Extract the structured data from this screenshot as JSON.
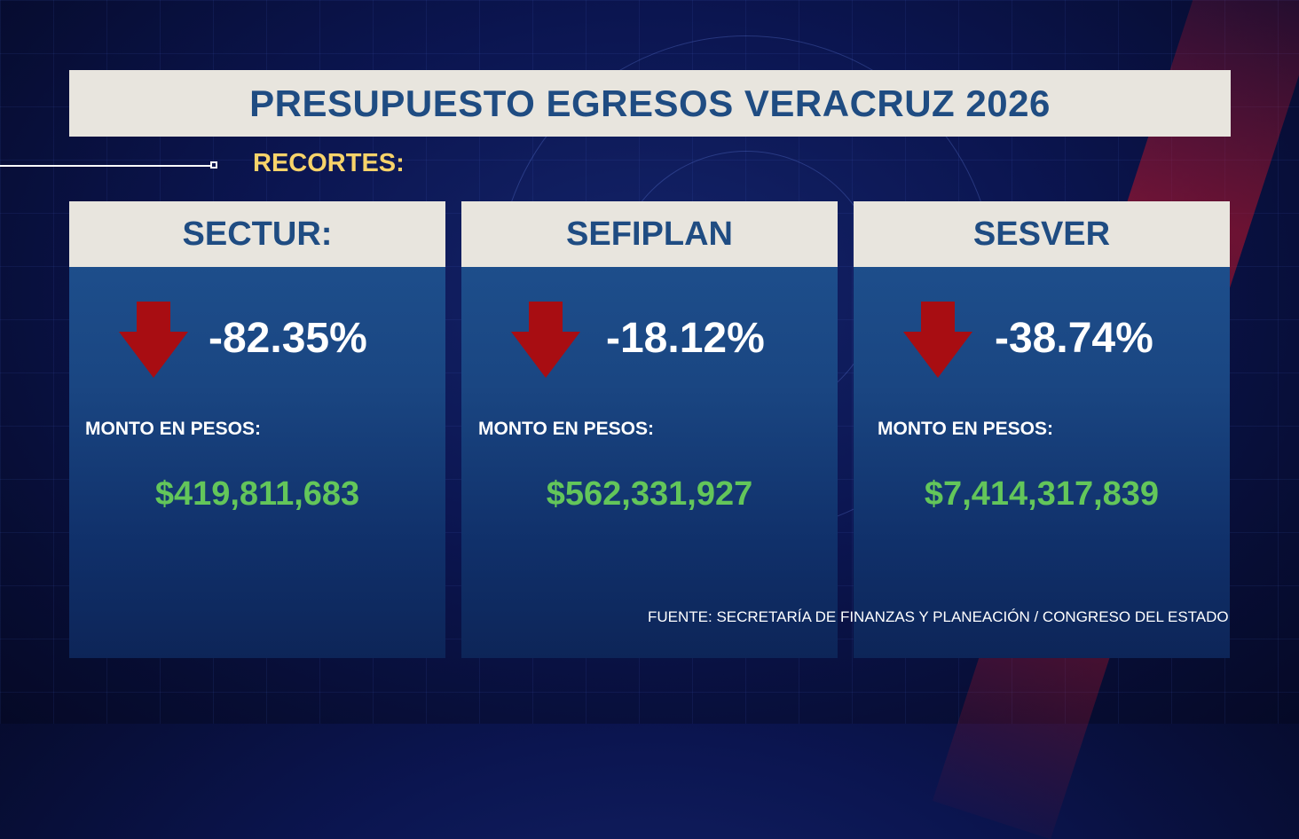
{
  "title": "PRESUPUESTO EGRESOS VERACRUZ 2026",
  "subtitle": "RECORTES:",
  "colors": {
    "title_text": "#1f4c82",
    "subtitle": "#f7d36a",
    "amount": "#63c65a",
    "arrow": "#a80d12",
    "panel_header": "#e8e5de"
  },
  "cards": [
    {
      "header": "SECTUR:",
      "arrow_icon": "down-arrow-icon",
      "percent": "-82.35%",
      "amount_label": "MONTO EN PESOS:",
      "amount": "$419,811,683"
    },
    {
      "header": "SEFIPLAN",
      "arrow_icon": "down-arrow-icon",
      "percent": "-18.12%",
      "amount_label": "MONTO EN PESOS:",
      "amount": "$562,331,927"
    },
    {
      "header": "SESVER",
      "arrow_icon": "down-arrow-icon",
      "percent": "-38.74%",
      "amount_label": "MONTO EN PESOS:",
      "amount": "$7,414,317,839"
    }
  ],
  "source": "FUENTE: SECRETARÍA DE FINANZAS Y PLANEACIÓN / CONGRESO DEL ESTADO"
}
